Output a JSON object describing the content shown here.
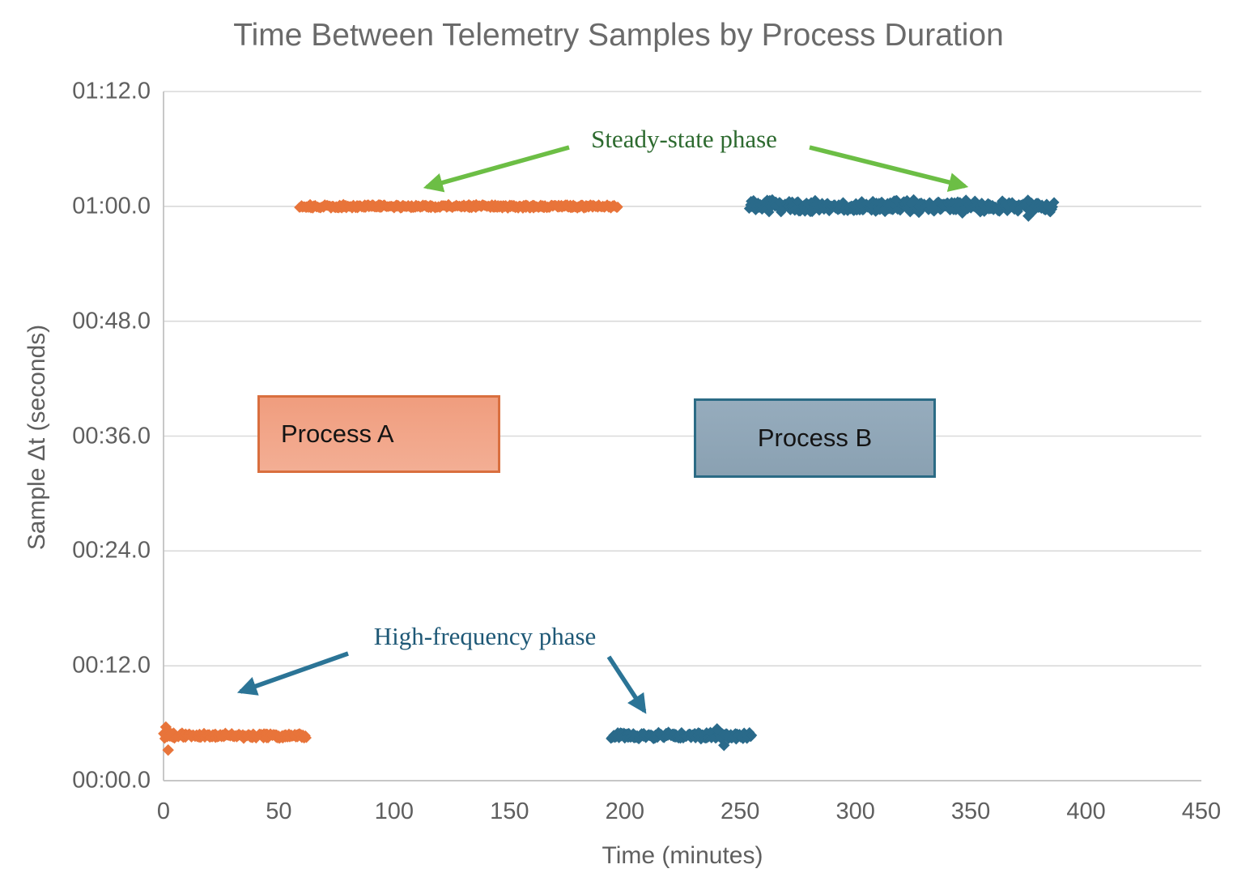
{
  "title": "Time Between Telemetry Samples by Process Duration",
  "axes": {
    "x": {
      "label": "Time (minutes)",
      "min": 0,
      "max": 450,
      "ticks": [
        "0",
        "50",
        "100",
        "150",
        "200",
        "250",
        "300",
        "350",
        "400",
        "450"
      ]
    },
    "y": {
      "label": "Sample Δt (seconds)",
      "min_seconds": 0,
      "max_seconds": 72,
      "ticks": [
        {
          "seconds": 0,
          "label": "00:00.0"
        },
        {
          "seconds": 12,
          "label": "00:12.0"
        },
        {
          "seconds": 24,
          "label": "00:24.0"
        },
        {
          "seconds": 36,
          "label": "00:36.0"
        },
        {
          "seconds": 48,
          "label": "00:48.0"
        },
        {
          "seconds": 60,
          "label": "01:00.0"
        },
        {
          "seconds": 72,
          "label": "01:12.0"
        }
      ]
    }
  },
  "annotations": [
    {
      "id": "steady-state",
      "text": "Steady-state phase",
      "text_color": "#2d6a2f",
      "arrow_color": "#6cbe45"
    },
    {
      "id": "high-frequency",
      "text": "High-frequency phase",
      "text_color": "#1e5876",
      "arrow_color": "#2b7496"
    }
  ],
  "process_labels": [
    {
      "text": "Process A",
      "fill": "#f0a183",
      "border": "#d96f3f"
    },
    {
      "text": "Process B",
      "fill": "#90a7b8",
      "border": "#2b6b85"
    }
  ],
  "colors": {
    "series_a": "#e8743a",
    "series_b": "#2a6a8a",
    "gridline": "#d9d9d9",
    "axis_line": "#c2c2c2",
    "title_text": "#6a6a6a",
    "tick_text": "#5f5f5f"
  },
  "chart_data": {
    "type": "scatter",
    "title": "Time Between Telemetry Samples by Process Duration",
    "xlabel": "Time (minutes)",
    "ylabel": "Sample Δt (seconds)",
    "xlim": [
      0,
      450
    ],
    "ylim_seconds": [
      0,
      72
    ],
    "x_ticks": [
      0,
      50,
      100,
      150,
      200,
      250,
      300,
      350,
      400,
      450
    ],
    "y_ticks_seconds": [
      0,
      12,
      24,
      36,
      48,
      60,
      72
    ],
    "y_tick_format": "mm:ss.s",
    "grid": "horizontal-only",
    "legend": "none",
    "marker": "diamond",
    "series": [
      {
        "name": "Process A",
        "color": "#e8743a",
        "segments": [
          {
            "phase": "high-frequency",
            "t_start_min": 0,
            "t_end_min": 62,
            "dt_seconds": 4.7,
            "jitter_seconds": 0.22,
            "points_per_min": 3
          },
          {
            "phase": "steady-state",
            "t_start_min": 59,
            "t_end_min": 197,
            "dt_seconds": 60,
            "jitter_seconds": 0.15,
            "points_per_min": 3
          }
        ],
        "outliers": [
          {
            "t_min": 1,
            "dt_seconds": 5.6
          },
          {
            "t_min": 2,
            "dt_seconds": 3.2
          }
        ]
      },
      {
        "name": "Process B",
        "color": "#2a6a8a",
        "segments": [
          {
            "phase": "high-frequency",
            "t_start_min": 194,
            "t_end_min": 255,
            "dt_seconds": 4.7,
            "jitter_seconds": 0.28,
            "points_per_min": 3
          },
          {
            "phase": "steady-state",
            "t_start_min": 254,
            "t_end_min": 386,
            "dt_seconds": 60,
            "jitter_seconds": 0.5,
            "points_per_min": 2.6
          }
        ],
        "outliers": [
          {
            "t_min": 240,
            "dt_seconds": 5.4
          },
          {
            "t_min": 243,
            "dt_seconds": 3.7
          },
          {
            "t_min": 375,
            "dt_seconds": 59.0
          }
        ]
      }
    ]
  }
}
